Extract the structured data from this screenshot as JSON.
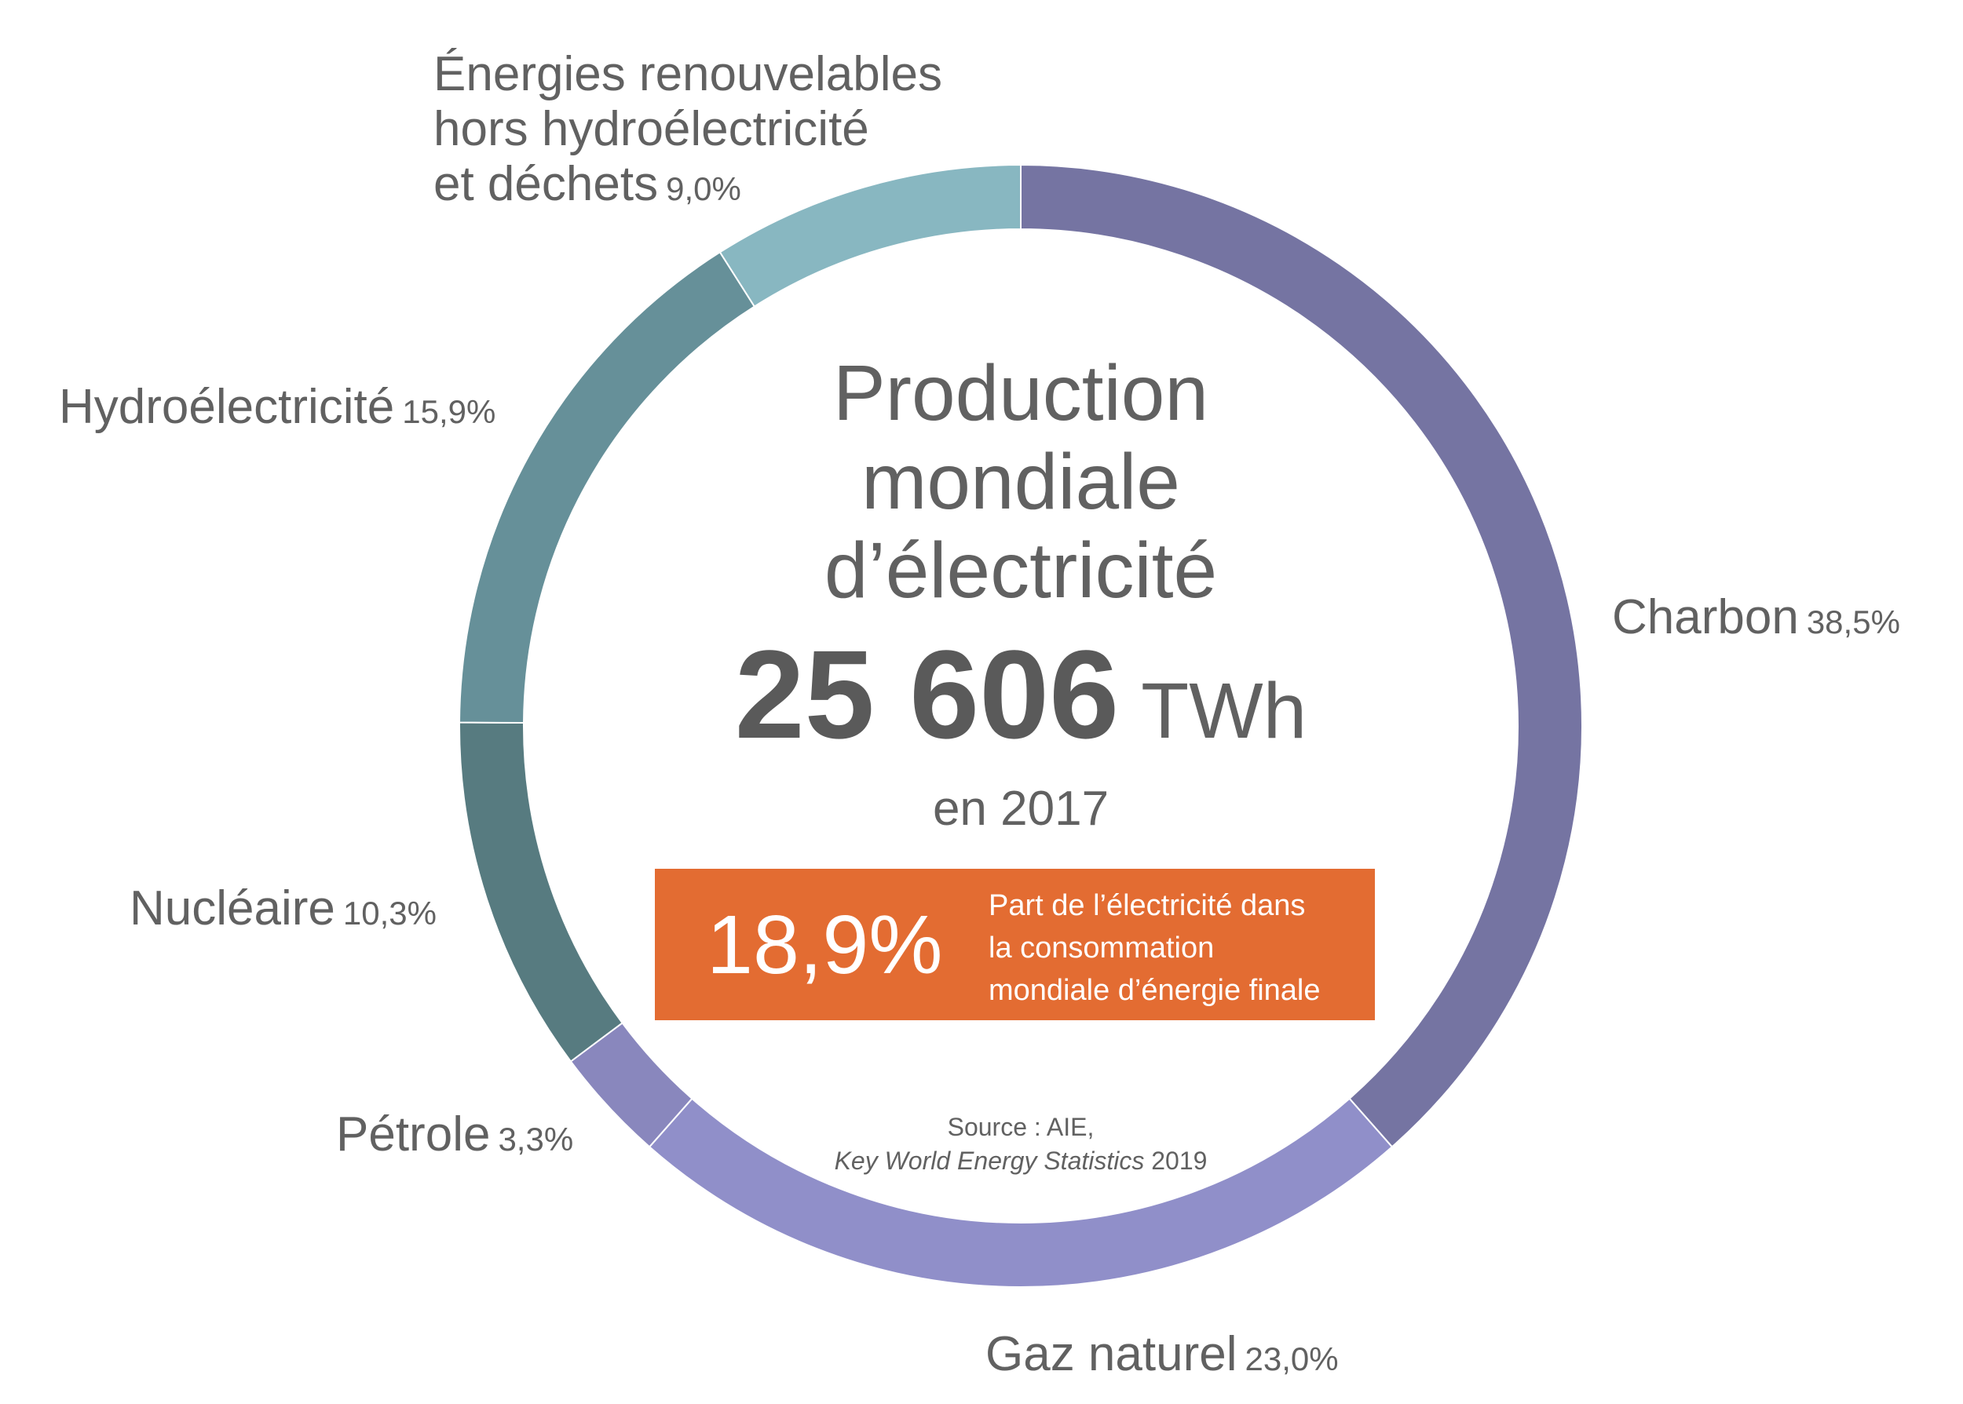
{
  "chart_data": {
    "type": "pie",
    "title": "Production mondiale d’électricité",
    "total": {
      "value": "25 606",
      "unit": "TWh",
      "year_label": "en 2017"
    },
    "slices": [
      {
        "label": "Charbon",
        "value": 38.5,
        "value_label": "38,5%",
        "color": "#7574a2"
      },
      {
        "label": "Gaz naturel",
        "value": 23.0,
        "value_label": "23,0%",
        "color": "#908fc9"
      },
      {
        "label": "Pétrole",
        "value": 3.3,
        "value_label": "3,3%",
        "color": "#8987bd"
      },
      {
        "label": "Nucléaire",
        "value": 10.3,
        "value_label": "10,3%",
        "color": "#577b80"
      },
      {
        "label": "Hydroélectricité",
        "value": 15.9,
        "value_label": "15,9%",
        "color": "#669099"
      },
      {
        "label_lines": [
          "Énergies renouvelables",
          "hors hydroélectricité",
          "et déchets"
        ],
        "value": 9.0,
        "value_label": "9,0%",
        "color": "#88b7c1"
      }
    ],
    "highlight": {
      "value": "18,9%",
      "text_lines": [
        "Part de l’électricité dans",
        "la consommation",
        "mondiale d’énergie finale"
      ],
      "color": "#e36c32"
    },
    "source": {
      "prefix": "Source : AIE,",
      "title_italic": "Key World Energy Statistics",
      "year": "2019"
    }
  },
  "title_lines": [
    "Production",
    "mondiale",
    "d’électricité"
  ]
}
